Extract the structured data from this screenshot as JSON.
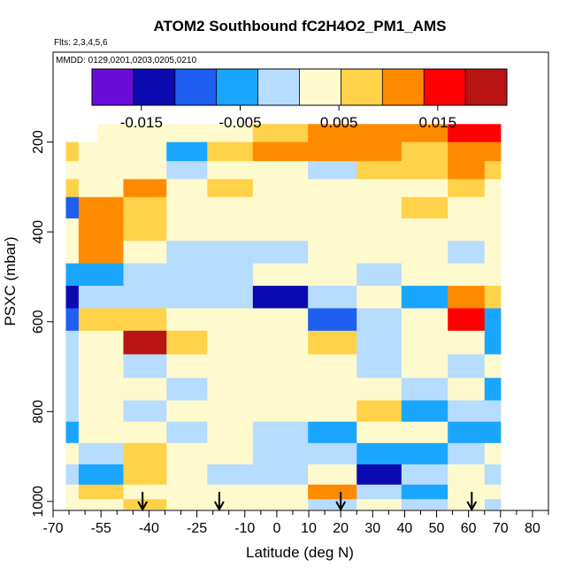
{
  "chart_data": {
    "type": "heatmap",
    "title": "ATOM2 Southbound fC2H4O2_PM1_AMS",
    "flights_label": "Flts: 2,3,4,5,6",
    "dates_label": "MMDD: 0129,0201,0203,0205,0210",
    "xlabel": "Latitude (deg N)",
    "ylabel": "PSXC (mbar)",
    "xlim": [
      -70,
      85
    ],
    "ylim": [
      1020,
      0
    ],
    "x_ticks": [
      -70,
      -55,
      -40,
      -25,
      -10,
      0,
      10,
      20,
      30,
      40,
      50,
      60,
      70,
      80
    ],
    "x_tick_labels": [
      "-70",
      "-55",
      "-40",
      "-25",
      "-10",
      "0",
      "10",
      "20",
      "30",
      "40",
      "50",
      "60",
      "70",
      "80"
    ],
    "x_minor_ticks": [
      -65,
      -60,
      -50,
      -45,
      -35,
      -30,
      -20,
      -15,
      -5,
      5,
      15,
      25,
      35,
      45,
      55,
      65,
      75,
      85
    ],
    "y_ticks": [
      200,
      400,
      600,
      800,
      1000
    ],
    "y_tick_labels": [
      "200",
      "400",
      "600",
      "800",
      "1000"
    ],
    "colorbar": {
      "range": [
        -0.02,
        0.022
      ],
      "ticks": [
        -0.015,
        -0.005,
        0.005,
        0.015
      ],
      "tick_labels": [
        "-0.015",
        "-0.005",
        "0.005",
        "0.015"
      ],
      "colors": [
        "#6a0dd8",
        "#0a0ab0",
        "#1e5ef0",
        "#1aa6ff",
        "#b6dcff",
        "#fffacd",
        "#ffd24a",
        "#ff8a00",
        "#ff0000",
        "#b81414"
      ]
    },
    "latitude_bins": [
      -69.5,
      -54.5,
      -41.5,
      -27.5,
      -16.0,
      1.0,
      18.5,
      31.5,
      46.5,
      60.5,
      69.5
    ],
    "pressure_rows": [
      {
        "p": 180,
        "lat_range": [
          -56,
          70
        ],
        "values": [
          0.004,
          0.003,
          0.002,
          0.003,
          0.005,
          0.009,
          0.01,
          0.011,
          0.012,
          0.015,
          0.016
        ]
      },
      {
        "p": 220,
        "lat_range": [
          -66,
          70
        ],
        "values": [
          0.008,
          0.003,
          0.002,
          -0.004,
          0.008,
          0.01,
          0.01,
          0.01,
          0.009,
          0.012,
          0.01
        ]
      },
      {
        "p": 265,
        "lat_range": [
          -66,
          70
        ],
        "values": [
          0.003,
          0.002,
          0.003,
          -0.001,
          0.003,
          0.001,
          -0.001,
          0.006,
          0.009,
          0.01,
          0.007
        ]
      },
      {
        "p": 300,
        "lat_range": [
          -66,
          70
        ],
        "values": [
          0.006,
          0.003,
          0.012,
          0.004,
          0.006,
          0.004,
          0.002,
          0.003,
          0.005,
          0.006,
          0.004
        ]
      },
      {
        "p": 345,
        "lat_range": [
          -66,
          70
        ],
        "values": [
          -0.01,
          0.012,
          0.007,
          0.004,
          0.003,
          0.005,
          0.005,
          0.002,
          0.006,
          0.004,
          0.003
        ]
      },
      {
        "p": 395,
        "lat_range": [
          -66,
          70
        ],
        "values": [
          0.003,
          0.012,
          0.008,
          0.001,
          0.003,
          0.004,
          0.003,
          0.002,
          0.004,
          0.002,
          0.001
        ]
      },
      {
        "p": 445,
        "lat_range": [
          -66,
          70
        ],
        "values": [
          0.003,
          0.01,
          0.004,
          -0.002,
          -0.001,
          0.0,
          0.003,
          0.004,
          0.002,
          -0.001,
          0.002
        ]
      },
      {
        "p": 495,
        "lat_range": [
          -66,
          70
        ],
        "values": [
          -0.004,
          -0.006,
          -0.003,
          -0.001,
          0.0,
          0.001,
          0.003,
          -0.002,
          0.001,
          0.004,
          0.002
        ]
      },
      {
        "p": 545,
        "lat_range": [
          -66,
          70
        ],
        "values": [
          -0.013,
          -0.003,
          0.0,
          -0.001,
          0.0,
          -0.014,
          -0.003,
          0.002,
          -0.005,
          0.012,
          0.007
        ]
      },
      {
        "p": 595,
        "lat_range": [
          -66,
          70
        ],
        "values": [
          -0.01,
          0.006,
          0.008,
          0.002,
          0.001,
          0.003,
          -0.008,
          -0.002,
          0.003,
          0.014,
          -0.004
        ]
      },
      {
        "p": 645,
        "lat_range": [
          -66,
          70
        ],
        "values": [
          -0.002,
          0.002,
          0.019,
          0.007,
          0.003,
          0.003,
          0.008,
          -0.001,
          0.002,
          0.002,
          -0.005
        ]
      },
      {
        "p": 700,
        "lat_range": [
          -66,
          70
        ],
        "values": [
          0.0,
          0.001,
          -0.002,
          0.002,
          0.003,
          0.001,
          0.004,
          -0.002,
          0.001,
          -0.003,
          0.001
        ]
      },
      {
        "p": 750,
        "lat_range": [
          -66,
          70
        ],
        "values": [
          0.0,
          0.001,
          0.003,
          0.0,
          0.002,
          0.001,
          0.003,
          0.002,
          0.0,
          0.001,
          -0.006
        ]
      },
      {
        "p": 800,
        "lat_range": [
          -66,
          70
        ],
        "values": [
          -0.003,
          0.001,
          -0.002,
          0.004,
          0.004,
          0.002,
          0.003,
          0.006,
          -0.004,
          -0.001,
          -0.002
        ]
      },
      {
        "p": 845,
        "lat_range": [
          -66,
          70
        ],
        "values": [
          -0.004,
          0.002,
          0.001,
          -0.003,
          0.002,
          -0.002,
          -0.006,
          0.003,
          0.001,
          -0.004,
          -0.005
        ]
      },
      {
        "p": 895,
        "lat_range": [
          -66,
          70
        ],
        "values": [
          0.001,
          0.0,
          0.008,
          0.004,
          0.002,
          0.0,
          -0.003,
          -0.004,
          -0.004,
          -0.002,
          0.003
        ]
      },
      {
        "p": 940,
        "lat_range": [
          -66,
          70
        ],
        "values": [
          0.0,
          -0.006,
          0.006,
          0.003,
          -0.001,
          -0.002,
          0.001,
          -0.012,
          -0.003,
          0.005,
          -0.002
        ]
      },
      {
        "p": 985,
        "lat_range": [
          -66,
          70
        ],
        "values": [
          0.002,
          0.006,
          0.004,
          0.005,
          0.002,
          0.001,
          0.012,
          -0.003,
          -0.004,
          0.003,
          0.001
        ]
      },
      {
        "p": 1005,
        "lat_range": [
          -66,
          70
        ],
        "values": [
          0.002,
          0.004,
          0.006,
          0.003,
          0.001,
          0.005,
          -0.001,
          0.004,
          0.0,
          0.001,
          -0.003
        ]
      }
    ],
    "arrow_latitudes": [
      -42,
      -18,
      20,
      61
    ],
    "grid": false
  }
}
